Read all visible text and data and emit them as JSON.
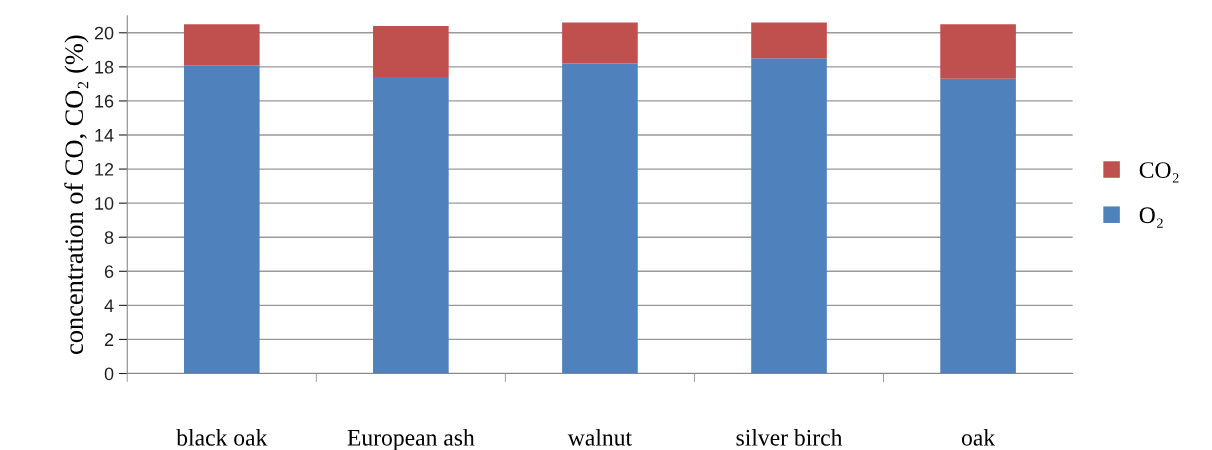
{
  "chart_data": {
    "type": "bar",
    "stacked": true,
    "ylabel": "concentration of CO, CO₂ (%)",
    "categories": [
      "black oak",
      "European ash",
      "walnut",
      "silver birch",
      "oak"
    ],
    "series": [
      {
        "name": "O₂",
        "color": "#4f81bd",
        "values": [
          18.1,
          17.4,
          18.2,
          18.5,
          17.3
        ]
      },
      {
        "name": "CO₂",
        "color": "#c0504d",
        "values": [
          2.4,
          3.0,
          2.4,
          2.1,
          3.2
        ]
      }
    ],
    "ylim": [
      0,
      21
    ],
    "yticks": [
      0,
      2,
      4,
      6,
      8,
      10,
      12,
      14,
      16,
      18,
      20
    ],
    "grid": "y",
    "legend": "right"
  }
}
